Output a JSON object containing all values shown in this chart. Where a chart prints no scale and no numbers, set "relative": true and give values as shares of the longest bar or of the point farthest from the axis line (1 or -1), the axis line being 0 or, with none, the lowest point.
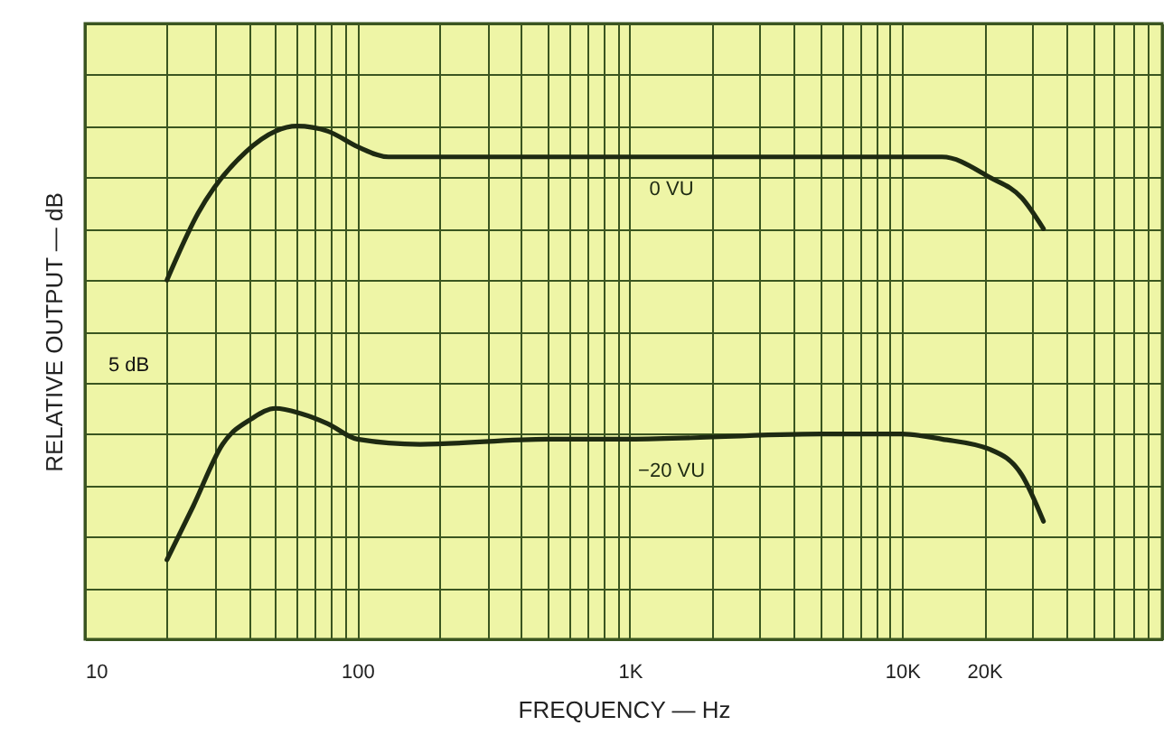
{
  "chart_data": {
    "type": "line",
    "relative": true,
    "xlabel": "FREQUENCY — Hz",
    "ylabel": "RELATIVE OUTPUT — dB",
    "log": "x",
    "xlim": [
      10,
      90000
    ],
    "xticks": [
      10,
      {
        "value": 20,
        "label": null
      },
      {
        "value": 30,
        "label": null
      },
      {
        "value": 40,
        "label": null
      },
      {
        "value": 50,
        "label": null
      },
      {
        "value": 60,
        "label": null
      },
      {
        "value": 70,
        "label": null
      },
      {
        "value": 80,
        "label": null
      },
      {
        "value": 90,
        "label": null
      },
      100,
      {
        "value": 200,
        "label": null
      },
      {
        "value": 300,
        "label": null
      },
      {
        "value": 400,
        "label": null
      },
      {
        "value": 500,
        "label": null
      },
      {
        "value": 600,
        "label": null
      },
      {
        "value": 700,
        "label": null
      },
      {
        "value": 800,
        "label": null
      },
      {
        "value": 900,
        "label": null
      },
      {
        "value": 1000,
        "label": "1K"
      },
      {
        "value": 2000,
        "label": null
      },
      {
        "value": 3000,
        "label": null
      },
      {
        "value": 4000,
        "label": null
      },
      {
        "value": 5000,
        "label": null
      },
      {
        "value": 6000,
        "label": null
      },
      {
        "value": 7000,
        "label": null
      },
      {
        "value": 8000,
        "label": null
      },
      {
        "value": 9000,
        "label": null
      },
      {
        "value": 10000,
        "label": "10K"
      },
      {
        "value": 20000,
        "label": "20K"
      },
      {
        "value": 30000,
        "label": null
      },
      {
        "value": 40000,
        "label": null
      },
      {
        "value": 50000,
        "label": null
      },
      {
        "value": 60000,
        "label": null
      },
      {
        "value": 70000,
        "label": null
      },
      {
        "value": 80000,
        "label": null
      },
      {
        "value": 90000,
        "label": null
      }
    ],
    "grid": true,
    "marker": "none",
    "line_style": "solid",
    "series": [
      {
        "name": "0 VU",
        "color": "#1e2a12",
        "x": [
          20,
          26,
          39,
          50,
          60,
          78,
          100,
          130,
          200,
          1000,
          5000,
          10000,
          14000,
          21000,
          27500,
          33000
        ],
        "values": [
          0.7,
          0.83,
          0.95,
          0.99,
          1.0,
          0.99,
          0.96,
          0.94,
          0.94,
          0.94,
          0.94,
          0.94,
          0.94,
          0.9,
          0.86,
          0.8
        ]
      },
      {
        "name": "−20 VU",
        "color": "#1e2a12",
        "x": [
          20,
          25,
          32,
          41,
          50,
          62,
          78,
          100,
          170,
          500,
          1000,
          5000,
          10000,
          14000,
          21000,
          27500,
          33000
        ],
        "values": [
          0.155,
          0.26,
          0.38,
          0.43,
          0.45,
          0.44,
          0.42,
          0.39,
          0.38,
          0.39,
          0.39,
          0.4,
          0.4,
          0.39,
          0.37,
          0.32,
          0.23
        ]
      }
    ],
    "annotations": [
      "5 dB"
    ]
  }
}
